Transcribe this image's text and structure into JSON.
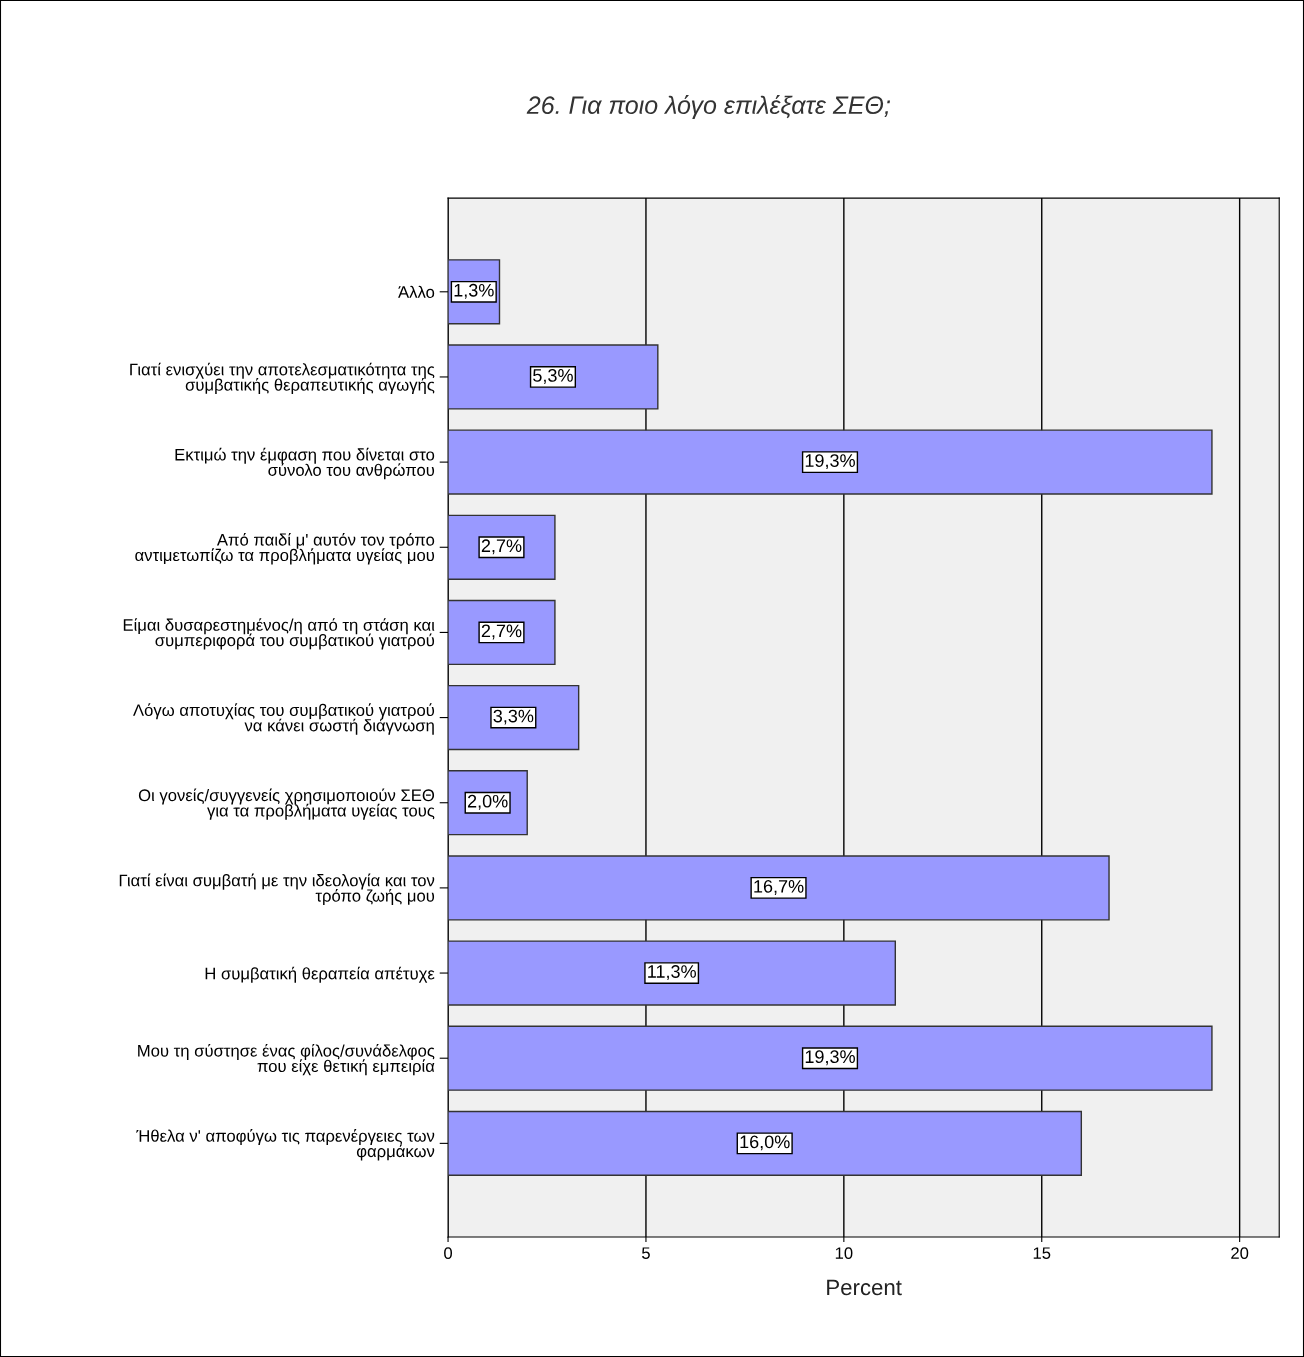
{
  "chart_data": {
    "type": "bar",
    "orientation": "horizontal",
    "title": "26. Για ποιο λόγο επιλέξατε ΣΕΘ;",
    "xlabel": "Percent",
    "categories": [
      "Άλλο",
      "Γιατί ενισχύει την αποτελεσματικότητα της\nσυμβατικής θεραπευτικής αγωγής",
      "Εκτιμώ την έμφαση που δίνεται στο\nσύνολο του ανθρώπου",
      "Από παιδί μ' αυτόν τον τρόπο\nαντιμετωπίζω τα προβλήματα υγείας μου",
      "Είμαι δυσαρεστημένος/η από τη στάση και\nσυμπεριφορά του συμβατικού γιατρού",
      "Λόγω αποτυχίας του συμβατικού γιατρού\nνα κάνει σωστή διάγνωση",
      "Οι γονείς/συγγενείς χρησιμοποιούν ΣΕΘ\nγια τα προβλήματα υγείας τους",
      "Γιατί είναι συμβατή με την ιδεολογία και τον\nτρόπο ζωής μου",
      "Η συμβατική θεραπεία απέτυχε",
      "Μου τη σύστησε ένας φίλος/συνάδελφος\nπου είχε θετική εμπειρία",
      "Ήθελα ν' αποφύγω τις παρενέργειες των\nφαρμάκων"
    ],
    "values": [
      1.3,
      5.3,
      19.3,
      2.7,
      2.7,
      3.3,
      2.0,
      16.7,
      11.3,
      19.3,
      16.0
    ],
    "value_labels": [
      "1,3%",
      "5,3%",
      "19,3%",
      "2,7%",
      "2,7%",
      "3,3%",
      "2,0%",
      "16,7%",
      "11,3%",
      "19,3%",
      "16,0%"
    ],
    "color": "#9999ff",
    "xlim": [
      0,
      21
    ],
    "xticks": [
      0,
      5,
      10,
      15,
      20
    ],
    "grid": "x"
  }
}
